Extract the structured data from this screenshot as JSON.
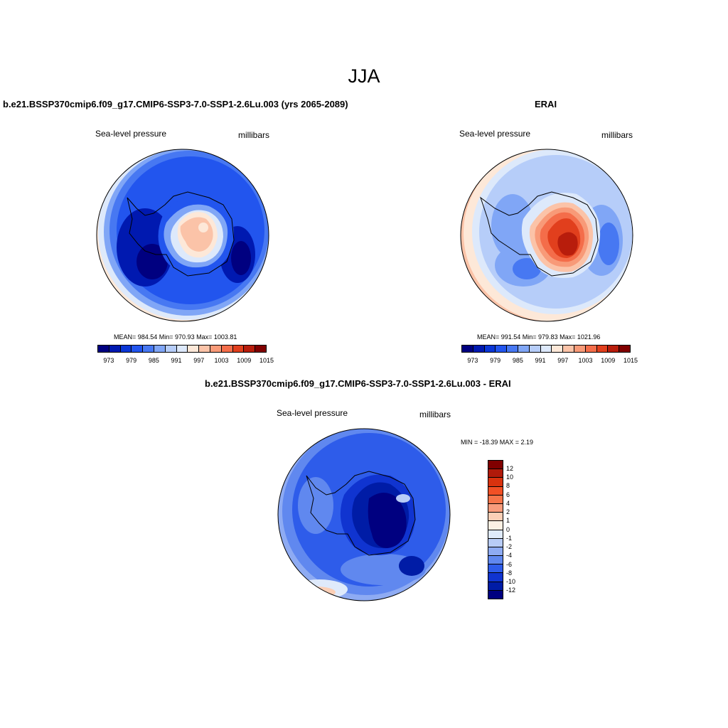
{
  "main_title": "JJA",
  "panels": {
    "model": {
      "title": "b.e21.BSSP370cmip6.f09_g17.CMIP6-SSP3-7.0-SSP1-2.6Lu.003 (yrs 2065-2089)",
      "left_label": "Sea-level pressure",
      "right_label": "millibars",
      "stats": "MEAN= 984.54  Min= 970.93  Max= 1003.81"
    },
    "obs": {
      "title": "ERAI",
      "left_label": "Sea-level pressure",
      "right_label": "millibars",
      "stats": "MEAN= 991.54  Min= 979.83  Max= 1021.96"
    },
    "diff": {
      "title": "b.e21.BSSP370cmip6.f09_g17.CMIP6-SSP3-7.0-SSP1-2.6Lu.003 - ERAI",
      "left_label": "Sea-level pressure",
      "right_label": "millibars",
      "stats": "MIN = -18.39 MAX =   2.19"
    }
  },
  "colorbar_main": {
    "colors": [
      "#000080",
      "#0019b0",
      "#0a36d6",
      "#2255ee",
      "#4778f2",
      "#80a6f6",
      "#b6cdf9",
      "#dde9fb",
      "#fde8d8",
      "#fbc3a8",
      "#f89a78",
      "#f46d4a",
      "#e13f1d",
      "#b81d0c",
      "#800000"
    ],
    "labels": [
      "973",
      "979",
      "985",
      "991",
      "997",
      "1003",
      "1009",
      "1015"
    ]
  },
  "colorbar_diff": {
    "colors": [
      "#800000",
      "#b01a0a",
      "#d9320e",
      "#f25025",
      "#f7754a",
      "#f99c7c",
      "#fbcfb6",
      "#fdf0e3",
      "#dfeafb",
      "#b8ccf7",
      "#8eabf3",
      "#6088ef",
      "#2e5cea",
      "#1034d0",
      "#001ca6",
      "#000080"
    ],
    "labels": [
      "12",
      "10",
      "8",
      "6",
      "4",
      "2",
      "1",
      "0",
      "-1",
      "-2",
      "-4",
      "-6",
      "-8",
      "-10",
      "-12"
    ]
  }
}
